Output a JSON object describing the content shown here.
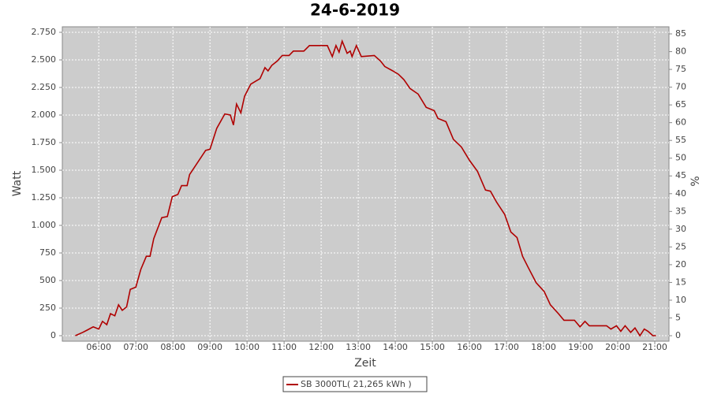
{
  "chart_data": {
    "type": "line",
    "title": "24-6-2019",
    "x_label": "Zeit",
    "y_label": "Watt",
    "y2_label": "%",
    "x": [
      "05:22",
      "05:34",
      "05:41",
      "05:51",
      "06:00",
      "06:06",
      "06:13",
      "06:19",
      "06:26",
      "06:32",
      "06:38",
      "06:45",
      "06:51",
      "07:00",
      "07:08",
      "07:17",
      "07:23",
      "07:29",
      "07:42",
      "07:51",
      "07:59",
      "08:08",
      "08:14",
      "08:23",
      "08:27",
      "08:40",
      "08:53",
      "09:00",
      "09:11",
      "09:24",
      "09:33",
      "09:38",
      "09:43",
      "09:50",
      "09:56",
      "10:06",
      "10:15",
      "10:21",
      "10:29",
      "10:34",
      "10:40",
      "10:49",
      "10:57",
      "11:08",
      "11:15",
      "11:32",
      "11:41",
      "12:10",
      "12:18",
      "12:24",
      "12:29",
      "12:34",
      "12:42",
      "12:47",
      "12:50",
      "12:57",
      "13:05",
      "13:26",
      "13:36",
      "13:43",
      "13:56",
      "14:05",
      "14:14",
      "14:24",
      "14:37",
      "14:50",
      "15:03",
      "15:09",
      "15:22",
      "15:34",
      "15:47",
      "16:00",
      "16:13",
      "16:26",
      "16:34",
      "16:44",
      "16:57",
      "17:07",
      "17:17",
      "17:26",
      "17:35",
      "17:48",
      "18:01",
      "18:11",
      "18:24",
      "18:33",
      "18:50",
      "18:59",
      "19:07",
      "19:14",
      "19:42",
      "19:49",
      "19:58",
      "20:05",
      "20:12",
      "20:21",
      "20:28",
      "20:36",
      "20:43",
      "20:49",
      "20:57",
      "21:02"
    ],
    "series": [
      {
        "name": "SB 3000TL( 21,265 kWh )",
        "color": "#b00000",
        "values": [
          0,
          30,
          50,
          80,
          60,
          130,
          100,
          200,
          180,
          280,
          230,
          260,
          420,
          440,
          600,
          720,
          720,
          880,
          1070,
          1080,
          1260,
          1280,
          1360,
          1360,
          1460,
          1570,
          1680,
          1690,
          1880,
          2010,
          2000,
          1910,
          2100,
          2020,
          2170,
          2280,
          2310,
          2330,
          2430,
          2400,
          2450,
          2490,
          2540,
          2540,
          2580,
          2580,
          2630,
          2630,
          2530,
          2630,
          2570,
          2670,
          2560,
          2580,
          2530,
          2630,
          2530,
          2540,
          2490,
          2440,
          2400,
          2370,
          2320,
          2240,
          2190,
          2070,
          2040,
          1970,
          1940,
          1780,
          1710,
          1590,
          1490,
          1320,
          1310,
          1210,
          1100,
          940,
          890,
          720,
          620,
          480,
          400,
          280,
          200,
          140,
          140,
          80,
          130,
          90,
          90,
          60,
          90,
          40,
          90,
          30,
          70,
          0,
          60,
          40,
          0,
          0
        ]
      }
    ],
    "xlim": [
      "05:01",
      "21:23"
    ],
    "xticks": [
      "06:00",
      "07:00",
      "08:00",
      "09:00",
      "10:00",
      "11:00",
      "12:00",
      "13:00",
      "14:00",
      "15:00",
      "16:00",
      "17:00",
      "18:00",
      "19:00",
      "20:00",
      "21:00"
    ],
    "ylim": [
      -50,
      2800
    ],
    "yticks": [
      0,
      250,
      500,
      750,
      {
        "value": 1000,
        "label": "1.000"
      },
      {
        "value": 1250,
        "label": "1.250"
      },
      {
        "value": 1500,
        "label": "1.500"
      },
      {
        "value": 1750,
        "label": "1.750"
      },
      {
        "value": 2000,
        "label": "2.000"
      },
      {
        "value": 2250,
        "label": "2.250"
      },
      {
        "value": 2500,
        "label": "2.500"
      },
      {
        "value": 2750,
        "label": "2.750"
      }
    ],
    "y2lim": [
      -1.55,
      87.0
    ],
    "y2ticks": [
      0,
      5,
      10,
      15,
      20,
      25,
      30,
      35,
      40,
      45,
      50,
      55,
      60,
      65,
      70,
      75,
      80,
      85
    ],
    "grid": true
  }
}
